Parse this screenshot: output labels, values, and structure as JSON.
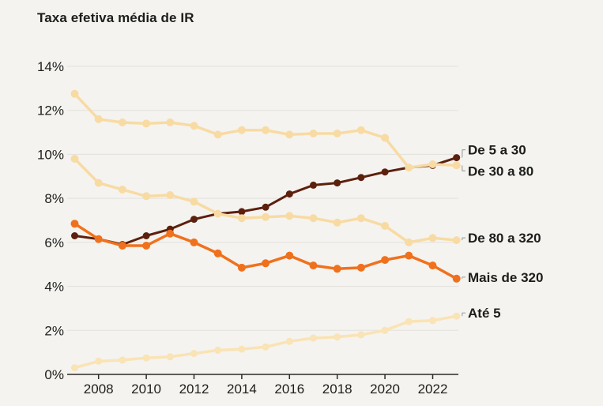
{
  "title": "Taxa efetiva média de IR",
  "chart_data": {
    "type": "line",
    "title": "Taxa efetiva média de IR",
    "xlabel": "",
    "ylabel": "",
    "x": [
      2007,
      2008,
      2009,
      2010,
      2011,
      2012,
      2013,
      2014,
      2015,
      2016,
      2017,
      2018,
      2019,
      2020,
      2021,
      2022,
      2023
    ],
    "xticks": [
      2008,
      2010,
      2012,
      2014,
      2016,
      2018,
      2020,
      2022
    ],
    "yticks": [
      0,
      2,
      4,
      6,
      8,
      10,
      12,
      14
    ],
    "ytick_suffix": "%",
    "ylim": [
      0,
      14
    ],
    "grid": "horizontal",
    "legend_position": "right-end-labels",
    "series": [
      {
        "name": "De 5 a 30",
        "color": "#5c200d",
        "values": [
          6.3,
          6.15,
          5.9,
          6.3,
          6.6,
          7.05,
          7.3,
          7.4,
          7.6,
          8.2,
          8.6,
          8.7,
          8.95,
          9.2,
          9.4,
          9.5,
          9.85
        ]
      },
      {
        "name": "De 30 a 80",
        "color": "#f8dba3",
        "values": [
          12.75,
          11.6,
          11.45,
          11.4,
          11.45,
          11.3,
          10.9,
          11.1,
          11.1,
          10.9,
          10.95,
          10.95,
          11.1,
          10.75,
          9.4,
          9.55,
          9.5
        ]
      },
      {
        "name": "De 80 a 320",
        "color": "#f8dba3",
        "values": [
          9.8,
          8.7,
          8.4,
          8.1,
          8.15,
          7.85,
          7.3,
          7.1,
          7.15,
          7.2,
          7.1,
          6.9,
          7.1,
          6.75,
          6.0,
          6.2,
          6.1
        ]
      },
      {
        "name": "Mais de 320",
        "color": "#f0711d",
        "values": [
          6.85,
          6.15,
          5.85,
          5.85,
          6.4,
          6.0,
          5.5,
          4.85,
          5.05,
          5.4,
          4.95,
          4.8,
          4.85,
          5.2,
          5.4,
          4.95,
          4.35
        ]
      },
      {
        "name": "Até 5",
        "color": "#fae3b4",
        "values": [
          0.3,
          0.6,
          0.65,
          0.75,
          0.8,
          0.95,
          1.1,
          1.15,
          1.25,
          1.5,
          1.65,
          1.7,
          1.8,
          2.0,
          2.4,
          2.45,
          2.65
        ]
      }
    ]
  },
  "colors": {
    "background": "#f4f3f0",
    "text": "#1d1d1b",
    "gridline": "#e3e1dc",
    "axis": "#2b2b29",
    "series_dark_maroon": "#5c200d",
    "series_wheat": "#f8dba3",
    "series_orange": "#f0711d",
    "series_pale_wheat": "#fae3b4"
  }
}
